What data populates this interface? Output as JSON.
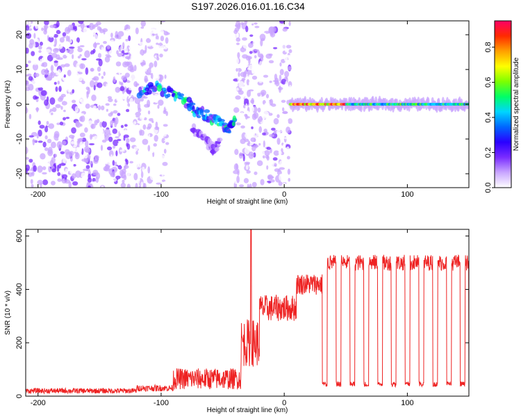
{
  "title": "S197.2026.016.01.16.C34",
  "chart_data": [
    {
      "type": "heatmap",
      "id": "spectrogram",
      "title": "",
      "xlabel": "Height of straight line (km)",
      "ylabel": "Frequency (Hz)",
      "xlim": [
        -210,
        150
      ],
      "ylim": [
        -24,
        24
      ],
      "x_ticks": [
        -200,
        -100,
        0,
        100
      ],
      "x_tick_labels": [
        "-200",
        "-100",
        "0",
        "100"
      ],
      "y_ticks": [
        20,
        10,
        0,
        -10,
        -20
      ],
      "y_tick_labels": [
        "20",
        "10",
        "0",
        "-10",
        "-20"
      ],
      "colorbar": {
        "label": "Normalized spectral amplitude",
        "range": [
          0,
          0.95
        ],
        "ticks": [
          0.0,
          0.2,
          0.4,
          0.6,
          0.8
        ],
        "tick_labels": [
          "0.0",
          "0.2",
          "0.4",
          "0.6",
          "0.8"
        ],
        "colormap": [
          "#ffffff",
          "#c9a6ff",
          "#7a2cff",
          "#2a00ff",
          "#0066ff",
          "#00d5ff",
          "#00ff66",
          "#7dff00",
          "#ffff00",
          "#ffa000",
          "#ff2a00",
          "#ff0066"
        ]
      },
      "segments": [
        {
          "name": "noise",
          "x_range": [
            -210,
            -125
          ],
          "freq_spread": 24,
          "amplitude": 0.08
        },
        {
          "name": "noise-upper",
          "x_range": [
            -125,
            -95
          ],
          "freq_spread": 24,
          "amplitude": 0.06
        },
        {
          "name": "drift-track",
          "points": [
            [
              -118,
              3
            ],
            [
              -105,
              5
            ],
            [
              -92,
              3
            ],
            [
              -80,
              1
            ],
            [
              -72,
              -2
            ],
            [
              -64,
              -3
            ],
            [
              -55,
              -5
            ],
            [
              -45,
              -7
            ],
            [
              -40,
              -5
            ]
          ],
          "amplitude": 0.35
        },
        {
          "name": "drift-scatter",
          "points": [
            [
              -75,
              -7
            ],
            [
              -65,
              -10
            ],
            [
              -58,
              -13
            ],
            [
              -52,
              -11
            ]
          ],
          "amplitude": 0.15
        },
        {
          "name": "noise-late",
          "x_range": [
            -40,
            5
          ],
          "freq_spread": 24,
          "amplitude": 0.07
        },
        {
          "name": "carrier",
          "x_range": [
            5,
            150
          ],
          "frequency": 0,
          "amplitude": 0.55
        }
      ]
    },
    {
      "type": "line",
      "id": "snr",
      "title": "",
      "xlabel": "Height of straight line (km)",
      "ylabel": "SNR (10 * v/v)",
      "color": "#ee2222",
      "xlim": [
        -210,
        150
      ],
      "ylim": [
        0,
        625
      ],
      "x_ticks": [
        -200,
        -100,
        0,
        100
      ],
      "x_tick_labels": [
        "-200",
        "-100",
        "0",
        "100"
      ],
      "y_ticks": [
        0,
        200,
        400,
        600
      ],
      "y_tick_labels": [
        "0",
        "200",
        "400",
        "600"
      ],
      "segments": [
        {
          "x": [
            -210,
            -120
          ],
          "mean": 20,
          "noise": 10
        },
        {
          "x": [
            -120,
            -90
          ],
          "mean": 30,
          "noise": 12
        },
        {
          "x": [
            -90,
            -35
          ],
          "mean": 65,
          "noise": 40
        },
        {
          "x": [
            -35,
            -20
          ],
          "mean": 200,
          "noise": 90
        },
        {
          "x": [
            -20,
            10
          ],
          "mean": 330,
          "noise": 50
        },
        {
          "x": [
            10,
            33
          ],
          "mean": 420,
          "noise": 40
        },
        {
          "x": [
            33,
            150
          ],
          "mean": 500,
          "noise": 30
        }
      ],
      "spike": {
        "x": -27,
        "value": 625
      },
      "dropouts": {
        "start": 31,
        "period": 11.2,
        "width": 4,
        "value": 35,
        "count": 11
      }
    }
  ]
}
